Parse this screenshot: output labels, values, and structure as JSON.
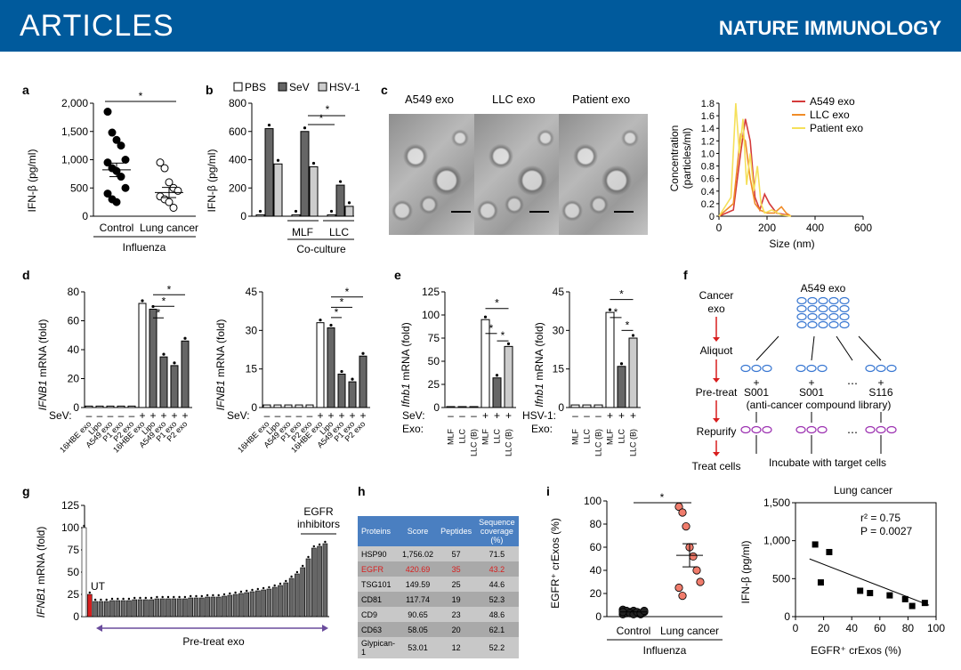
{
  "header": {
    "left": "ARTICLES",
    "right": "NATURE IMMUNOLOGY"
  },
  "colors": {
    "header_bg": "#005a9c",
    "red": "#d81e1e",
    "dark_gray": "#666666",
    "light_gray": "#cccccc"
  },
  "labels": {
    "a": "a",
    "b": "b",
    "c": "c",
    "d": "d",
    "e": "e",
    "f": "f",
    "g": "g",
    "h": "h",
    "i": "i",
    "star": "*"
  },
  "panel_a": {
    "ylabel": "IFN-β (pg/ml)",
    "yticks": [
      "2,000",
      "1,500",
      "1,000",
      "500",
      "0"
    ],
    "categories": [
      "Control",
      "Lung cancer"
    ],
    "group": "Influenza"
  },
  "panel_b": {
    "ylabel": "IFN-β (pg/ml)",
    "yticks": [
      "800",
      "600",
      "400",
      "200",
      "0"
    ],
    "legend": [
      "PBS",
      "SeV",
      "HSV-1"
    ],
    "groups": [
      "MLF",
      "LLC"
    ],
    "group_label": "Co-culture"
  },
  "panel_c": {
    "em_labels": [
      "A549 exo",
      "LLC exo",
      "Patient exo"
    ],
    "ylabel_1": "Concentration",
    "ylabel_2": "(particles/ml)",
    "xlabel": "Size (nm)",
    "yticks": [
      "1.8",
      "1.6",
      "1.4",
      "1.2",
      "1.0",
      "0.8",
      "0.6",
      "0.4",
      "0.2",
      "0"
    ],
    "xticks": [
      "0",
      "200",
      "400",
      "600"
    ],
    "legend": [
      "A549 exo",
      "LLC exo",
      "Patient exo"
    ]
  },
  "panel_d": {
    "ylabel_gene": "IFNB1",
    "ylabel_rest": " mRNA (fold)",
    "yticks_1": [
      "80",
      "60",
      "40",
      "20",
      "0"
    ],
    "yticks_2": [
      "45",
      "30",
      "15",
      "0"
    ],
    "sev_label": "SeV:",
    "signs": [
      "–",
      "–",
      "–",
      "–",
      "–",
      "+",
      "+",
      "+",
      "+",
      "+"
    ],
    "xcats": [
      "16HBE exo",
      "Lipo",
      "A549 exo",
      "P1 exo",
      "P2 exo",
      "16HBE exo",
      "Lipo",
      "A549 exo",
      "P1 exo",
      "P2 exo"
    ]
  },
  "panel_e": {
    "ylabel_gene": "Ifnb1",
    "ylabel_rest": " mRNA (fold)",
    "yticks_1": [
      "125",
      "100",
      "75",
      "50",
      "25",
      "0"
    ],
    "yticks_2": [
      "45",
      "30",
      "15",
      "0"
    ],
    "sev_label": "SeV:",
    "hsv_label": "HSV-1:",
    "exo_label": "Exo:",
    "signs": [
      "–",
      "–",
      "–",
      "+",
      "+",
      "+"
    ],
    "xcats": [
      "MLF",
      "LLC",
      "LLC (B)",
      "MLF",
      "LLC",
      "LLC (B)"
    ]
  },
  "panel_f": {
    "steps": [
      "Cancer",
      "exo",
      "Aliquot",
      "Pre-treat",
      "Repurify",
      "Treat cells"
    ],
    "top": "A549 exo",
    "compounds": [
      "S001",
      "S001",
      "S116"
    ],
    "plus": "+",
    "dots": "⋯",
    "library": "(anti-cancer compound library)",
    "incubate": "Incubate with target cells"
  },
  "panel_g": {
    "ylabel_gene": "IFNB1",
    "ylabel_rest": " mRNA (fold)",
    "yticks": [
      "125",
      "100",
      "75",
      "50",
      "25",
      "0"
    ],
    "ut_label": "UT",
    "egfr_label_1": "EGFR",
    "egfr_label_2": "inhibitors",
    "pretreat": "Pre-treat exo"
  },
  "panel_h": {
    "headers": [
      "Proteins",
      "Score",
      "Peptides",
      "Sequence coverage (%)"
    ],
    "rows": [
      [
        "HSP90",
        "1,756.02",
        "57",
        "71.5"
      ],
      [
        "EGFR",
        "420.69",
        "35",
        "43.2"
      ],
      [
        "TSG101",
        "149.59",
        "25",
        "44.6"
      ],
      [
        "CD81",
        "117.74",
        "19",
        "52.3"
      ],
      [
        "CD9",
        "90.65",
        "23",
        "48.6"
      ],
      [
        "CD63",
        "58.05",
        "20",
        "62.1"
      ],
      [
        "Glypican-1",
        "53.01",
        "12",
        "52.2"
      ]
    ]
  },
  "panel_i": {
    "ylabel_left": "EGFR⁺ crExos (%)",
    "yticks_left": [
      "100",
      "80",
      "60",
      "40",
      "20",
      "0"
    ],
    "categories": [
      "Control",
      "Lung cancer"
    ],
    "group": "Influenza",
    "right_title": "Lung cancer",
    "ylabel_right": "IFN-β (pg/ml)",
    "xlabel_right": "EGFR⁺ crExos (%)",
    "yticks_right": [
      "1,500",
      "1,000",
      "500",
      "0"
    ],
    "xticks_right": [
      "0",
      "20",
      "40",
      "60",
      "80",
      "100"
    ],
    "r2": "r² = 0.75",
    "p": "P = 0.0027"
  },
  "chart_data": [
    {
      "type": "scatter",
      "panel": "a",
      "categories": [
        "Control",
        "Lung cancer"
      ],
      "series": [
        {
          "name": "Control",
          "values": [
            1850,
            1480,
            1350,
            1250,
            1000,
            950,
            850,
            800,
            700,
            500,
            400,
            300,
            250
          ]
        },
        {
          "name": "Lung cancer",
          "values": [
            950,
            850,
            600,
            500,
            450,
            350,
            300,
            250,
            150
          ]
        }
      ],
      "means": [
        820,
        420
      ],
      "sem": [
        120,
        90
      ],
      "ylim": [
        0,
        2000
      ]
    },
    {
      "type": "bar",
      "panel": "b",
      "categories": [
        "",
        "MLF",
        "LLC"
      ],
      "series": [
        {
          "name": "PBS",
          "values": [
            10,
            10,
            10
          ]
        },
        {
          "name": "SeV",
          "values": [
            620,
            600,
            220
          ]
        },
        {
          "name": "HSV-1",
          "values": [
            370,
            350,
            70
          ]
        }
      ],
      "ylim": [
        0,
        800
      ]
    },
    {
      "type": "line",
      "panel": "c",
      "series": [
        {
          "name": "A549 exo",
          "x": [
            0,
            60,
            90,
            110,
            130,
            150,
            170,
            190,
            210,
            240,
            280,
            300
          ],
          "y": [
            0,
            0.1,
            1.0,
            1.55,
            1.2,
            0.3,
            0.1,
            0.35,
            0.2,
            0.05,
            0.02,
            0
          ]
        },
        {
          "name": "LLC exo",
          "x": [
            0,
            60,
            90,
            110,
            130,
            150,
            170,
            200,
            230,
            260,
            280,
            300
          ],
          "y": [
            0,
            0.2,
            1.3,
            1.2,
            0.6,
            0.2,
            0.1,
            0.05,
            0.05,
            0.15,
            0.05,
            0
          ]
        },
        {
          "name": "Patient exo",
          "x": [
            0,
            50,
            70,
            85,
            100,
            115,
            130,
            145,
            160,
            175,
            190,
            220,
            260,
            300
          ],
          "y": [
            0,
            0.3,
            1.8,
            1.0,
            1.55,
            0.5,
            1.0,
            0.4,
            0.8,
            0.2,
            0.05,
            0.1,
            0.02,
            0
          ]
        }
      ],
      "xlim": [
        0,
        600
      ],
      "ylim": [
        0,
        1.8
      ]
    },
    {
      "type": "bar",
      "panel": "d-left",
      "categories": [
        "16HBE exo",
        "Lipo",
        "A549 exo",
        "P1 exo",
        "P2 exo",
        "16HBE exo",
        "Lipo",
        "A549 exo",
        "P1 exo",
        "P2 exo"
      ],
      "values": [
        1,
        1,
        1,
        1,
        1,
        72,
        68,
        35,
        29,
        46
      ],
      "ylim": [
        0,
        80
      ]
    },
    {
      "type": "bar",
      "panel": "d-right",
      "categories": [
        "16HBE exo",
        "Lipo",
        "A549 exo",
        "P1 exo",
        "P2 exo",
        "16HBE exo",
        "Lipo",
        "A549 exo",
        "P1 exo",
        "P2 exo"
      ],
      "values": [
        1,
        1,
        1,
        1,
        1,
        33,
        31,
        13,
        10,
        20
      ],
      "ylim": [
        0,
        45
      ]
    },
    {
      "type": "bar",
      "panel": "e-left",
      "categories": [
        "MLF",
        "LLC",
        "LLC (B)",
        "MLF",
        "LLC",
        "LLC (B)"
      ],
      "values": [
        1,
        1,
        1,
        95,
        32,
        66
      ],
      "ylim": [
        0,
        125
      ]
    },
    {
      "type": "bar",
      "panel": "e-right",
      "categories": [
        "MLF",
        "LLC",
        "LLC (B)",
        "MLF",
        "LLC",
        "LLC (B)"
      ],
      "values": [
        1,
        1,
        1,
        37,
        16,
        27
      ],
      "ylim": [
        0,
        45
      ]
    },
    {
      "type": "bar",
      "panel": "g",
      "values": [
        100,
        25,
        17,
        17,
        17,
        18,
        18,
        18,
        18,
        19,
        19,
        19,
        19,
        20,
        20,
        20,
        20,
        20,
        20,
        21,
        21,
        21,
        22,
        22,
        22,
        23,
        24,
        25,
        26,
        27,
        28,
        29,
        30,
        31,
        33,
        35,
        38,
        43,
        48,
        55,
        65,
        77,
        79,
        82
      ],
      "ylim": [
        0,
        125
      ]
    },
    {
      "type": "scatter",
      "panel": "i-left",
      "categories": [
        "Control",
        "Lung cancer"
      ],
      "series": [
        {
          "name": "Control",
          "values": [
            2,
            3,
            4,
            5,
            3,
            2,
            4,
            6,
            5,
            3,
            2,
            4,
            3,
            5,
            4
          ]
        },
        {
          "name": "Lung cancer",
          "values": [
            95,
            90,
            78,
            60,
            52,
            40,
            30,
            25,
            18
          ]
        }
      ],
      "means": [
        4,
        53
      ],
      "ylim": [
        0,
        100
      ]
    },
    {
      "type": "scatter",
      "panel": "i-right",
      "x": [
        14,
        18,
        24,
        46,
        53,
        67,
        78,
        83,
        92
      ],
      "y": [
        950,
        450,
        850,
        340,
        310,
        280,
        230,
        140,
        180
      ],
      "xlim": [
        0,
        100
      ],
      "ylim": [
        0,
        1500
      ]
    }
  ]
}
